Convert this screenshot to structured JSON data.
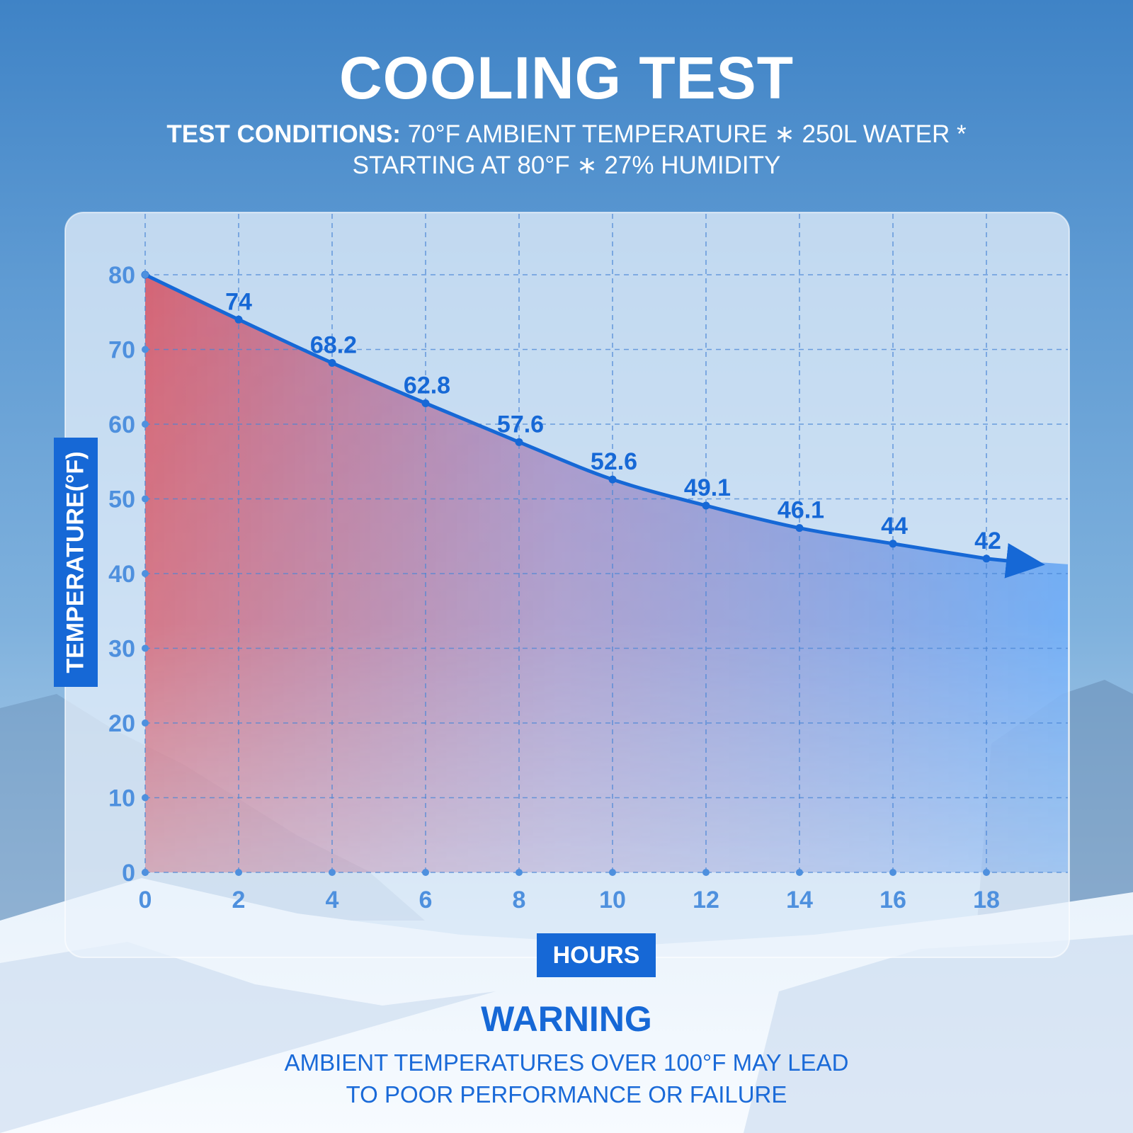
{
  "header": {
    "title": "COOLING TEST",
    "conditions_label": "TEST CONDITIONS:",
    "conditions_line1": "70°F AMBIENT TEMPERATURE ∗  250L WATER *",
    "conditions_line2": "STARTING AT 80°F ∗ 27% HUMIDITY"
  },
  "warning": {
    "title": "WARNING",
    "line1": "AMBIENT TEMPERATURES OVER 100°F MAY LEAD",
    "line2": "TO POOR PERFORMANCE OR FAILURE"
  },
  "chart_data": {
    "type": "line",
    "title": "",
    "xlabel": "HOURS",
    "ylabel": "TEMPERATURE(°F)",
    "x": [
      0,
      2,
      4,
      6,
      8,
      10,
      12,
      14,
      16,
      18
    ],
    "x_ticks": [
      "0",
      "2",
      "4",
      "6",
      "8",
      "10",
      "12",
      "14",
      "16",
      "18"
    ],
    "y_ticks": [
      "0",
      "10",
      "20",
      "30",
      "40",
      "50",
      "60",
      "70",
      "80"
    ],
    "xlim": [
      0,
      18
    ],
    "ylim": [
      0,
      80
    ],
    "grid": true,
    "series": [
      {
        "values": [
          80,
          74,
          68.2,
          62.8,
          57.6,
          52.6,
          49.1,
          46.1,
          44,
          42
        ],
        "labels": [
          "",
          "74",
          "68.2",
          "62.8",
          "57.6",
          "52.6",
          "49.1",
          "46.1",
          "44",
          "42"
        ]
      }
    ],
    "colors": {
      "line": "#1668d6",
      "fill_warm": "#d8505f",
      "fill_cool": "#4a98f5",
      "axis_text": "#4e90de",
      "grid": "#4a86d6"
    }
  }
}
